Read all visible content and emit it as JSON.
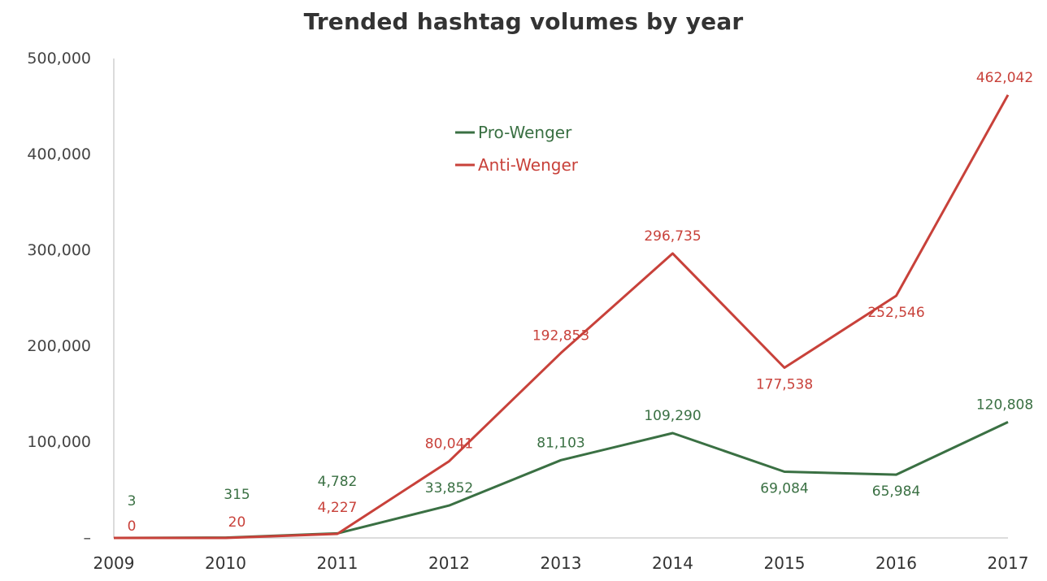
{
  "chart_data": {
    "type": "line",
    "title": "Trended hashtag volumes by year",
    "xlabel": "",
    "ylabel": "",
    "x": [
      "2009",
      "2010",
      "2011",
      "2012",
      "2013",
      "2014",
      "2015",
      "2016",
      "2017"
    ],
    "ylim": [
      0,
      500000
    ],
    "yticks": [
      {
        "value": 0,
        "label": "–"
      },
      {
        "value": 100000,
        "label": "100,000"
      },
      {
        "value": 200000,
        "label": "200,000"
      },
      {
        "value": 300000,
        "label": "300,000"
      },
      {
        "value": 400000,
        "label": "400,000"
      },
      {
        "value": 500000,
        "label": "500,000"
      }
    ],
    "grid": false,
    "legend_position": "top-center",
    "series": [
      {
        "name": "Pro-Wenger",
        "color": "#3a7043",
        "values": [
          3,
          315,
          4782,
          33852,
          81103,
          109290,
          69084,
          65984,
          120808
        ],
        "labels": [
          "3",
          "315",
          "4,782",
          "33,852",
          "81,103",
          "109,290",
          "69,084",
          "65,984",
          "120,808"
        ]
      },
      {
        "name": "Anti-Wenger",
        "color": "#c8413a",
        "values": [
          0,
          20,
          4227,
          80041,
          192853,
          296735,
          177538,
          252546,
          462042
        ],
        "labels": [
          "0",
          "20",
          "4,227",
          "80,041",
          "192,853",
          "296,735",
          "177,538",
          "252,546",
          "462,042"
        ]
      }
    ]
  }
}
